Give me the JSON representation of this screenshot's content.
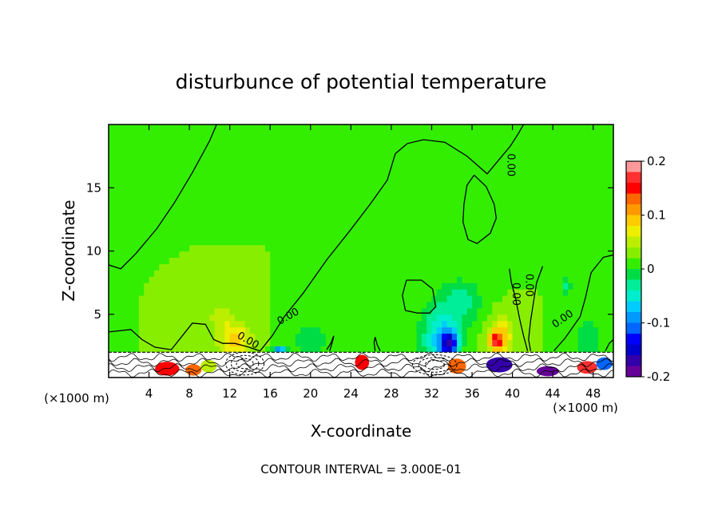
{
  "chart_data": {
    "type": "heatmap",
    "title": "disturbunce of potential temperature",
    "xlabel": "X-coordinate",
    "ylabel": "Z-coordinate",
    "x_unit": "(×1000 m)",
    "x_unit_right": "(×1000 m)",
    "xlim": [
      0,
      50
    ],
    "ylim": [
      0,
      20
    ],
    "x_ticks": [
      4,
      8,
      12,
      16,
      20,
      24,
      28,
      32,
      36,
      40,
      44,
      48
    ],
    "y_ticks": [
      5,
      10,
      15
    ],
    "grid": false,
    "footer": "CONTOUR INTERVAL = 3.000E-01",
    "colorbar": {
      "min": -0.2,
      "max": 0.2,
      "tick_values": [
        0.2,
        0.1,
        0,
        -0.1,
        -0.2
      ],
      "tick_labels": [
        "0.2",
        "0.1",
        "0",
        "-0.1",
        "-0.2"
      ],
      "colors": [
        "#ff9999",
        "#ff3030",
        "#ff0000",
        "#ff6600",
        "#ff9900",
        "#ffcc00",
        "#eeee00",
        "#bbee00",
        "#88ee00",
        "#33ee00",
        "#00dd44",
        "#00ee99",
        "#00eecc",
        "#00ccff",
        "#0099ff",
        "#0066ff",
        "#0000ff",
        "#0000cc",
        "#3300aa",
        "#660099"
      ]
    },
    "contour_labels": [
      {
        "text": "0.00",
        "x": 13.8,
        "y": 2.9,
        "rotate": 30
      },
      {
        "text": "0.00",
        "x": 17.8,
        "y": 4.8,
        "rotate": -30
      },
      {
        "text": "0.00",
        "x": 39.8,
        "y": 16.8,
        "rotate": 90
      },
      {
        "text": "0.00",
        "x": 41.6,
        "y": 7.3,
        "rotate": 90
      },
      {
        "text": "0.00",
        "x": 40.3,
        "y": 6.6,
        "rotate": 90
      },
      {
        "text": "0.00",
        "x": 45.0,
        "y": 4.6,
        "rotate": -35
      }
    ],
    "background_value": 0.02,
    "anomalies": [
      {
        "x": 12.5,
        "z": 3.0,
        "sx": 1.6,
        "sz": 1.3,
        "value": 0.09
      },
      {
        "x": 11.2,
        "z": 4.8,
        "sx": 1.4,
        "sz": 1.0,
        "value": 0.05
      },
      {
        "x": 16.9,
        "z": 2.1,
        "sx": 0.6,
        "sz": 0.4,
        "value": -0.12
      },
      {
        "x": 20.0,
        "z": 3.0,
        "sx": 1.8,
        "sz": 1.3,
        "value": -0.02
      },
      {
        "x": 32.7,
        "z": 3.1,
        "sx": 1.8,
        "sz": 2.6,
        "value": -0.06
      },
      {
        "x": 33.8,
        "z": 2.7,
        "sx": 0.9,
        "sz": 1.1,
        "value": -0.12
      },
      {
        "x": 35.0,
        "z": 6.0,
        "sx": 2.0,
        "sz": 1.8,
        "value": -0.03
      },
      {
        "x": 38.9,
        "z": 3.3,
        "sx": 1.2,
        "sz": 1.5,
        "value": 0.09
      },
      {
        "x": 38.3,
        "z": 2.9,
        "sx": 0.6,
        "sz": 0.7,
        "value": 0.13
      },
      {
        "x": 45.3,
        "z": 7.2,
        "sx": 0.5,
        "sz": 0.9,
        "value": -0.03
      },
      {
        "x": 47.5,
        "z": 3.2,
        "sx": 1.4,
        "sz": 1.6,
        "value": -0.02
      }
    ],
    "zero_contours": [
      [
        [
          0,
          8.9
        ],
        [
          1.2,
          8.6
        ],
        [
          2.7,
          9.8
        ],
        [
          4.8,
          11.8
        ],
        [
          6.5,
          13.8
        ],
        [
          8.3,
          16.2
        ],
        [
          10.0,
          18.7
        ],
        [
          10.7,
          20
        ]
      ],
      [
        [
          0,
          3.6
        ],
        [
          2.2,
          3.8
        ],
        [
          3.3,
          3.0
        ],
        [
          4.6,
          2.4
        ],
        [
          6.2,
          2.2
        ],
        [
          7.2,
          3.2
        ],
        [
          8.3,
          4.3
        ],
        [
          9.6,
          4.2
        ],
        [
          10.4,
          3.0
        ],
        [
          11.3,
          2.7
        ],
        [
          12.5,
          2.7
        ],
        [
          13.9,
          2.4
        ],
        [
          15.0,
          2.1
        ],
        [
          16.2,
          3.3
        ],
        [
          17.4,
          4.8
        ],
        [
          19.3,
          6.7
        ],
        [
          21.6,
          9.3
        ],
        [
          23.8,
          11.5
        ],
        [
          25.9,
          13.7
        ],
        [
          27.6,
          15.6
        ],
        [
          28.4,
          17.7
        ],
        [
          29.6,
          18.5
        ],
        [
          31.2,
          18.8
        ],
        [
          33.3,
          18.6
        ],
        [
          35.5,
          17.5
        ],
        [
          37.5,
          16.1
        ],
        [
          39.8,
          18.3
        ],
        [
          40.6,
          19.3
        ],
        [
          41.1,
          20
        ]
      ],
      [
        [
          36.2,
          16.0
        ],
        [
          37.4,
          15.1
        ],
        [
          38.2,
          13.7
        ],
        [
          38.4,
          12.6
        ],
        [
          37.8,
          11.4
        ],
        [
          36.5,
          10.6
        ],
        [
          35.6,
          10.9
        ],
        [
          35.1,
          12.3
        ],
        [
          35.2,
          13.7
        ],
        [
          35.5,
          15.2
        ],
        [
          36.2,
          16.0
        ]
      ],
      [
        [
          29.5,
          7.7
        ],
        [
          31.0,
          7.7
        ],
        [
          32.1,
          7.0
        ],
        [
          32.4,
          5.6
        ],
        [
          31.8,
          5.1
        ],
        [
          30.6,
          5.1
        ],
        [
          29.4,
          5.3
        ],
        [
          29.1,
          6.5
        ],
        [
          29.5,
          7.7
        ]
      ],
      [
        [
          39.7,
          8.6
        ],
        [
          39.9,
          7.5
        ],
        [
          40.3,
          6.3
        ],
        [
          40.7,
          4.7
        ],
        [
          41.1,
          3.3
        ],
        [
          41.5,
          2.1
        ]
      ],
      [
        [
          43.0,
          8.8
        ],
        [
          42.4,
          7.5
        ],
        [
          42.1,
          6.0
        ],
        [
          41.8,
          4.5
        ],
        [
          41.6,
          3.0
        ],
        [
          41.8,
          2.1
        ]
      ],
      [
        [
          44.1,
          2.1
        ],
        [
          45.2,
          3.1
        ],
        [
          46.7,
          4.8
        ],
        [
          47.2,
          6.2
        ],
        [
          47.8,
          8.3
        ],
        [
          49.0,
          9.5
        ],
        [
          50,
          9.7
        ]
      ],
      [
        [
          21.9,
          2.1
        ],
        [
          22.2,
          2.9
        ],
        [
          22.3,
          3.3
        ],
        [
          22.0,
          2.7
        ],
        [
          21.6,
          2.2
        ]
      ],
      [
        [
          26.4,
          2.1
        ],
        [
          26.3,
          2.8
        ],
        [
          26.4,
          3.2
        ],
        [
          26.6,
          2.6
        ],
        [
          26.9,
          2.1
        ]
      ],
      [
        [
          49.2,
          2.1
        ],
        [
          49.6,
          2.7
        ],
        [
          50,
          3.0
        ]
      ]
    ],
    "ground_layer": {
      "top": 2.0,
      "blobs": [
        {
          "x": 5.8,
          "z": 0.7,
          "rx": 1.2,
          "rz": 0.55,
          "color": "#ff0000"
        },
        {
          "x": 8.4,
          "z": 0.6,
          "rx": 0.8,
          "rz": 0.45,
          "color": "#ff6600"
        },
        {
          "x": 9.9,
          "z": 0.9,
          "rx": 0.8,
          "rz": 0.5,
          "color": "#bbee00"
        },
        {
          "x": 25.1,
          "z": 1.2,
          "rx": 0.7,
          "rz": 0.6,
          "color": "#ff0000"
        },
        {
          "x": 34.5,
          "z": 0.9,
          "rx": 0.9,
          "rz": 0.6,
          "color": "#ff6600"
        },
        {
          "x": 38.7,
          "z": 1.0,
          "rx": 1.3,
          "rz": 0.6,
          "color": "#3300aa"
        },
        {
          "x": 43.5,
          "z": 0.5,
          "rx": 1.1,
          "rz": 0.4,
          "color": "#660099"
        },
        {
          "x": 47.4,
          "z": 0.8,
          "rx": 1.0,
          "rz": 0.5,
          "color": "#ff3030"
        },
        {
          "x": 49.1,
          "z": 1.1,
          "rx": 0.8,
          "rz": 0.5,
          "color": "#0066ff"
        }
      ],
      "dashed_regions": [
        {
          "x": 13.5,
          "z": 1.1,
          "rx": 1.9,
          "rz": 0.9
        },
        {
          "x": 32.3,
          "z": 1.0,
          "rx": 2.2,
          "rz": 0.8
        }
      ]
    }
  }
}
